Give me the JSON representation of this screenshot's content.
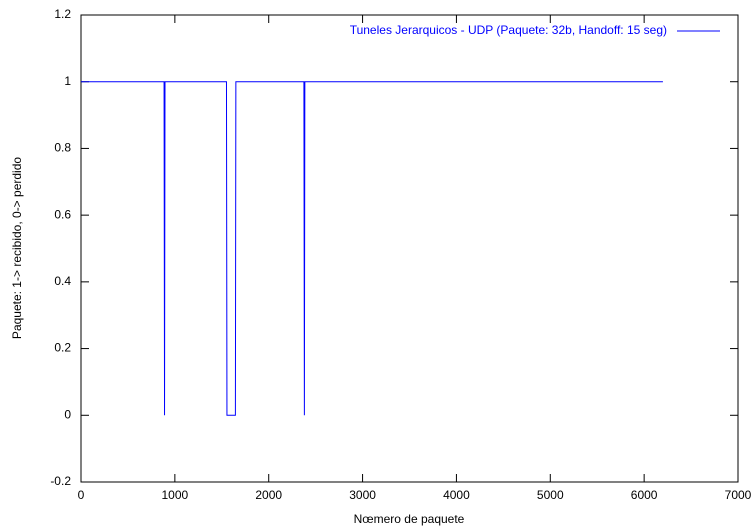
{
  "chart_data": {
    "type": "line",
    "xlabel": "Nœmero de paquete",
    "ylabel": "Paquete: 1-> recibido, 0-> perdido",
    "series": [
      {
        "name": "Tuneles Jerarquicos - UDP (Paquete: 32b, Handoff: 15 seg)",
        "color": "#0000ff",
        "x": [
          0,
          885,
          890,
          895,
          1550,
          1555,
          1645,
          1650,
          2375,
          2380,
          2385,
          6200
        ],
        "values": [
          1,
          1,
          0,
          1,
          1,
          0,
          0,
          1,
          1,
          0,
          1,
          1
        ]
      }
    ],
    "xlim": [
      0,
      7000
    ],
    "xticks": [
      0,
      1000,
      2000,
      3000,
      4000,
      5000,
      6000,
      7000
    ],
    "ylim": [
      -0.2,
      1.2
    ],
    "yticks": [
      -0.2,
      0,
      0.2,
      0.4,
      0.6,
      0.8,
      1,
      1.2
    ],
    "grid": false,
    "legend": "top-right"
  }
}
